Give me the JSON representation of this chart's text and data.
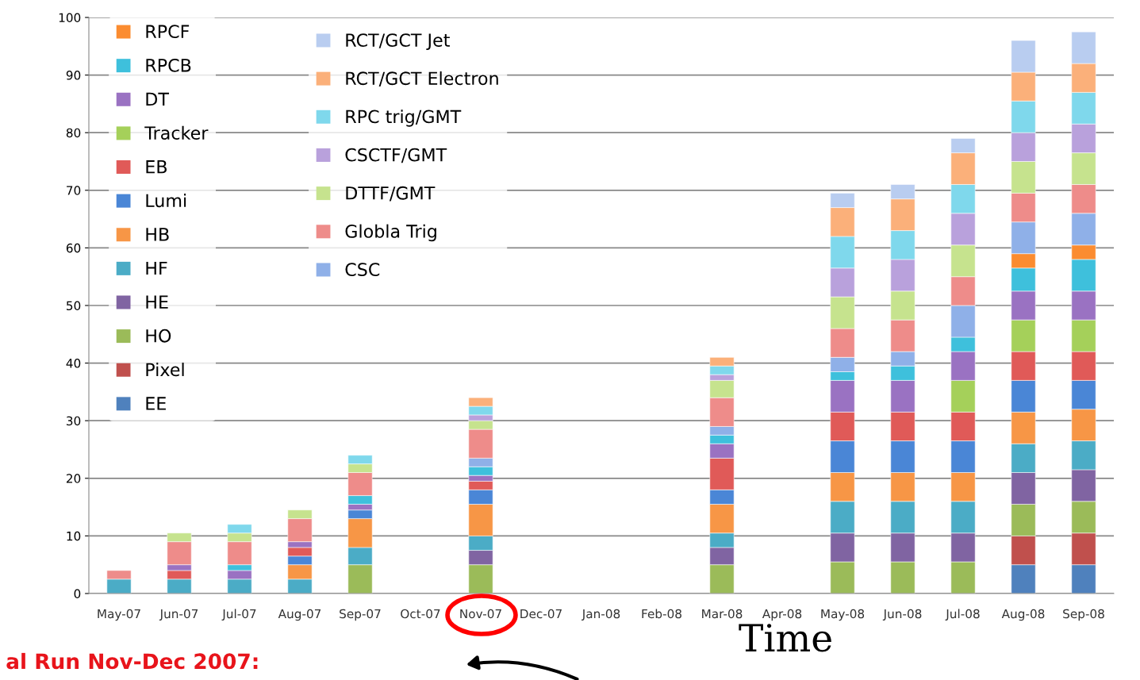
{
  "chart_data": {
    "type": "bar",
    "stacked": true,
    "xlabel": "Time",
    "annotations": [
      "al Run Nov-Dec 2007:"
    ],
    "categories": [
      "May-07",
      "Jun-07",
      "Jul-07",
      "Aug-07",
      "Sep-07",
      "Oct-07",
      "Nov-07",
      "Dec-07",
      "Jan-08",
      "Feb-08",
      "Mar-08",
      "Apr-08",
      "May-08",
      "Jun-08",
      "Jul-08",
      "Aug-08",
      "Sep-08"
    ],
    "ylim": [
      0,
      100
    ],
    "yticks": [
      0,
      10,
      20,
      30,
      40,
      50,
      60,
      70,
      80,
      90,
      100
    ],
    "grid": "y",
    "legend": "top left",
    "series": [
      {
        "name": "EE",
        "color": "#4f81bd",
        "values": [
          null,
          null,
          null,
          null,
          null,
          null,
          null,
          null,
          null,
          null,
          null,
          null,
          null,
          null,
          null,
          5,
          5
        ]
      },
      {
        "name": "Pixel",
        "color": "#c0504d",
        "values": [
          null,
          null,
          null,
          null,
          null,
          null,
          null,
          null,
          null,
          null,
          null,
          null,
          null,
          null,
          null,
          5,
          5.5
        ]
      },
      {
        "name": "HO",
        "color": "#9bbb59",
        "values": [
          null,
          null,
          null,
          null,
          5,
          null,
          5,
          null,
          null,
          null,
          5,
          null,
          5.5,
          5.5,
          5.5,
          5.5,
          5.5
        ]
      },
      {
        "name": "HE",
        "color": "#8064a2",
        "values": [
          null,
          null,
          null,
          null,
          null,
          null,
          2.5,
          null,
          null,
          null,
          3,
          null,
          5,
          5,
          5,
          5.5,
          5.5
        ]
      },
      {
        "name": "HF",
        "color": "#4bacc6",
        "values": [
          2.5,
          2.5,
          2.5,
          2.5,
          3,
          null,
          2.5,
          null,
          null,
          null,
          2.5,
          null,
          5.5,
          5.5,
          5.5,
          5,
          5
        ]
      },
      {
        "name": "HB",
        "color": "#f79646",
        "values": [
          null,
          null,
          null,
          2.5,
          5,
          null,
          5.5,
          null,
          null,
          null,
          5,
          null,
          5,
          5,
          5,
          5.5,
          5.5
        ]
      },
      {
        "name": "Lumi",
        "color": "#4a86d6",
        "values": [
          null,
          null,
          null,
          1.5,
          1.5,
          null,
          2.5,
          null,
          null,
          null,
          2.5,
          null,
          5.5,
          5.5,
          5.5,
          5.5,
          5
        ]
      },
      {
        "name": "EB",
        "color": "#e05a58",
        "values": [
          null,
          1.5,
          null,
          1.5,
          null,
          null,
          1.5,
          null,
          null,
          null,
          5.5,
          null,
          5,
          5,
          5,
          5,
          5
        ]
      },
      {
        "name": "Tracker",
        "color": "#a5d05a",
        "values": [
          null,
          null,
          null,
          null,
          null,
          null,
          null,
          null,
          null,
          null,
          null,
          null,
          null,
          null,
          5.5,
          5.5,
          5.5
        ]
      },
      {
        "name": "DT",
        "color": "#9a72c2",
        "values": [
          null,
          1,
          1.5,
          1,
          1,
          null,
          1,
          null,
          null,
          null,
          2.5,
          null,
          5.5,
          5.5,
          5,
          5,
          5
        ]
      },
      {
        "name": "RPCB",
        "color": "#3ec0dc",
        "values": [
          null,
          null,
          1,
          null,
          1.5,
          null,
          1.5,
          null,
          null,
          null,
          1.5,
          null,
          1.5,
          2.5,
          2.5,
          4,
          5.5
        ]
      },
      {
        "name": "RPCF",
        "color": "#fb8c30",
        "values": [
          null,
          null,
          null,
          null,
          null,
          null,
          null,
          null,
          null,
          null,
          null,
          null,
          null,
          null,
          null,
          2.5,
          2.5
        ]
      },
      {
        "name": "CSC",
        "color": "#8fb0e8",
        "values": [
          null,
          null,
          null,
          null,
          null,
          null,
          1.5,
          null,
          null,
          null,
          1.5,
          null,
          2.5,
          2.5,
          5.5,
          5.5,
          5.5
        ]
      },
      {
        "name": "Globla Trig",
        "color": "#ee8c8a",
        "values": [
          1.5,
          4,
          4,
          4,
          4,
          null,
          5,
          null,
          null,
          null,
          5,
          null,
          5,
          5.5,
          5,
          5,
          5
        ]
      },
      {
        "name": "DTTF/GMT",
        "color": "#c6e38e",
        "values": [
          null,
          1.5,
          1.5,
          1.5,
          1.5,
          null,
          1.5,
          null,
          null,
          null,
          3,
          null,
          5.5,
          5,
          5.5,
          5.5,
          5.5
        ]
      },
      {
        "name": "CSCTF/GMT",
        "color": "#b9a1dc",
        "values": [
          null,
          null,
          null,
          null,
          null,
          null,
          1,
          null,
          null,
          null,
          1,
          null,
          5,
          5.5,
          5.5,
          5,
          5
        ]
      },
      {
        "name": "RPC trig/GMT",
        "color": "#7fd8ec",
        "values": [
          null,
          null,
          1.5,
          null,
          1.5,
          null,
          1.5,
          null,
          null,
          null,
          1.5,
          null,
          5.5,
          5,
          5,
          5.5,
          5.5
        ]
      },
      {
        "name": "RCT/GCT Electron",
        "color": "#fbb07a",
        "values": [
          null,
          null,
          null,
          null,
          null,
          null,
          1.5,
          null,
          null,
          null,
          1.5,
          null,
          5,
          5.5,
          5.5,
          5,
          5
        ]
      },
      {
        "name": "RCT/GCT Jet",
        "color": "#b9cdf0",
        "values": [
          null,
          null,
          null,
          null,
          null,
          null,
          null,
          null,
          null,
          null,
          null,
          null,
          2.5,
          2.5,
          2.5,
          5.5,
          5.5
        ]
      }
    ]
  }
}
